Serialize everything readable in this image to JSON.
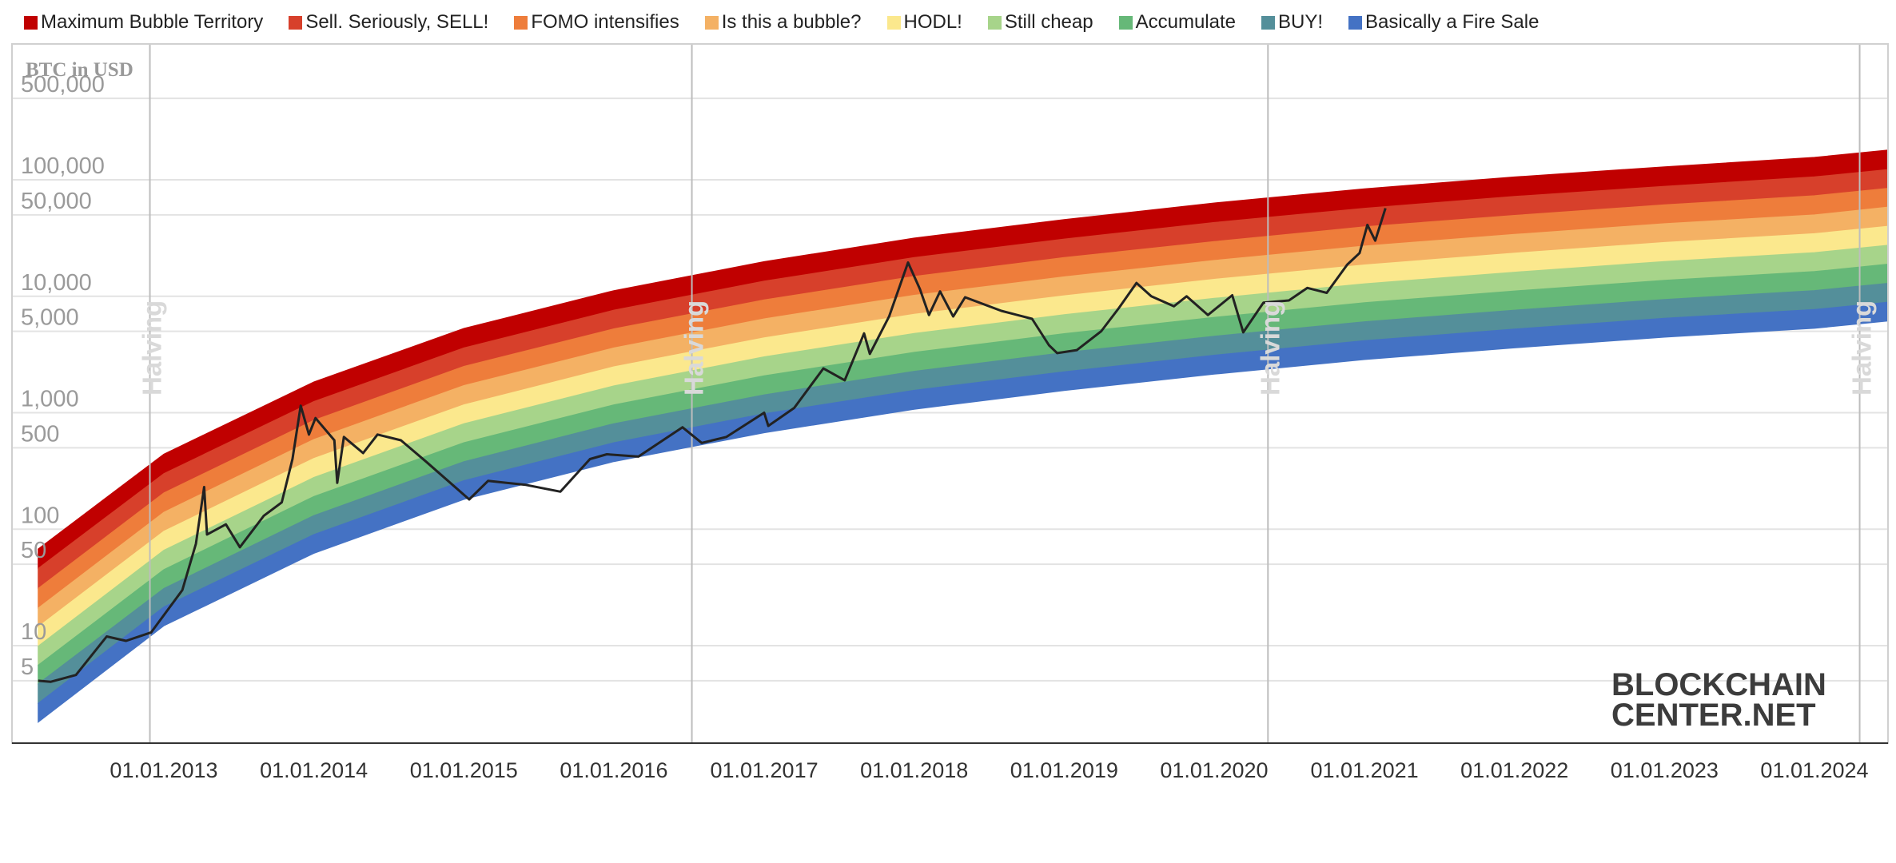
{
  "chart_data": {
    "type": "line",
    "axis_title": "BTC in USD",
    "y_scale": "log",
    "y_ticks": [
      5,
      10,
      50,
      100,
      500,
      1000,
      5000,
      10000,
      50000,
      100000,
      500000
    ],
    "y_tick_labels": [
      "5",
      "10",
      "50",
      "100",
      "500",
      "1,000",
      "5,000",
      "10,000",
      "50,000",
      "100,000",
      "500,000"
    ],
    "xlim": [
      "2012-03-01",
      "2024-08-01"
    ],
    "x_ticks": [
      "2013-01-01",
      "2014-01-01",
      "2015-01-01",
      "2016-01-01",
      "2017-01-01",
      "2018-01-01",
      "2019-01-01",
      "2020-01-01",
      "2021-01-01",
      "2022-01-01",
      "2023-01-01",
      "2024-01-01"
    ],
    "x_tick_labels": [
      "01.01.2013",
      "01.01.2014",
      "01.01.2015",
      "01.01.2016",
      "01.01.2017",
      "01.01.2018",
      "01.01.2019",
      "01.01.2020",
      "01.01.2021",
      "01.01.2022",
      "01.01.2023",
      "01.01.2024"
    ],
    "legend_position": "top",
    "bands": [
      {
        "name": "Maximum Bubble Territory",
        "color": "#c00000",
        "lower_edge": [
          46,
          300,
          1250,
          3600,
          7600,
          13500,
          21500,
          31000,
          43000,
          57000,
          72000,
          88000,
          106000,
          126000
        ]
      },
      {
        "name": "Sell. Seriously, SELL!",
        "color": "#d7402b",
        "lower_edge": [
          31,
          205,
          860,
          2500,
          5250,
          9300,
          14800,
          21500,
          29500,
          39500,
          49500,
          61000,
          73000,
          87000
        ]
      },
      {
        "name": "FOMO intensifies",
        "color": "#ee7d3b",
        "lower_edge": [
          21,
          140,
          590,
          1710,
          3600,
          6400,
          10200,
          14700,
          20300,
          27000,
          34000,
          42000,
          50000,
          60000
        ]
      },
      {
        "name": "Is this a bubble?",
        "color": "#f4b164",
        "lower_edge": [
          14.5,
          96,
          405,
          1170,
          2480,
          4400,
          7000,
          10100,
          14000,
          18600,
          23500,
          29000,
          34500,
          41000
        ]
      },
      {
        "name": "HODL!",
        "color": "#fbe88d",
        "lower_edge": [
          9.9,
          66,
          278,
          805,
          1700,
          3020,
          4800,
          6950,
          9600,
          12800,
          16100,
          19900,
          23700,
          28200
        ]
      },
      {
        "name": "Still cheap",
        "color": "#a7d48a",
        "lower_edge": [
          6.8,
          45,
          191,
          553,
          1170,
          2075,
          3300,
          4780,
          6600,
          8800,
          11100,
          13700,
          16300,
          19400
        ]
      },
      {
        "name": "Accumulate",
        "color": "#66b878",
        "lower_edge": [
          4.7,
          31,
          131,
          380,
          805,
          1425,
          2270,
          3280,
          4540,
          6050,
          7600,
          9400,
          11200,
          13300
        ]
      },
      {
        "name": "BUY!",
        "color": "#548f9a",
        "lower_edge": [
          3.2,
          21.5,
          90,
          261,
          553,
          980,
          1560,
          2250,
          3120,
          4160,
          5230,
          6470,
          7700,
          9150
        ]
      },
      {
        "name": "Basically a Fire Sale",
        "color": "#4472c4",
        "lower_edge": [
          2.2,
          14.8,
          62,
          180,
          380,
          673,
          1070,
          1550,
          2140,
          2860,
          3600,
          4450,
          5300,
          6300
        ]
      }
    ],
    "band_dates": [
      "2012-03-01",
      "2013-01-01",
      "2014-01-01",
      "2015-01-01",
      "2016-01-01",
      "2017-01-01",
      "2018-01-01",
      "2019-01-01",
      "2020-01-01",
      "2021-01-01",
      "2022-01-01",
      "2023-01-01",
      "2024-01-01",
      "2024-08-01"
    ],
    "series": [
      {
        "color": "#222222",
        "x": [
          "2012-03-01",
          "2012-04-01",
          "2012-06-01",
          "2012-08-15",
          "2012-10-01",
          "2012-12-01",
          "2013-02-15",
          "2013-03-20",
          "2013-04-09",
          "2013-04-16",
          "2013-06-01",
          "2013-07-05",
          "2013-09-01",
          "2013-10-15",
          "2013-11-10",
          "2013-11-30",
          "2013-12-20",
          "2014-01-05",
          "2014-02-20",
          "2014-02-27",
          "2014-03-15",
          "2014-05-01",
          "2014-06-05",
          "2014-08-01",
          "2014-10-01",
          "2015-01-14",
          "2015-03-01",
          "2015-06-01",
          "2015-08-24",
          "2015-11-04",
          "2015-12-15",
          "2016-03-01",
          "2016-06-16",
          "2016-08-02",
          "2016-10-01",
          "2017-01-01",
          "2017-01-11",
          "2017-03-15",
          "2017-05-25",
          "2017-07-16",
          "2017-09-01",
          "2017-09-15",
          "2017-11-01",
          "2017-12-17",
          "2018-01-15",
          "2018-02-06",
          "2018-03-05",
          "2018-04-06",
          "2018-05-05",
          "2018-08-01",
          "2018-10-15",
          "2018-11-25",
          "2018-12-15",
          "2019-02-01",
          "2019-04-01",
          "2019-05-15",
          "2019-06-26",
          "2019-08-01",
          "2019-09-25",
          "2019-10-26",
          "2019-12-17",
          "2020-02-14",
          "2020-03-12",
          "2020-04-30",
          "2020-07-01",
          "2020-08-15",
          "2020-10-01",
          "2020-11-20",
          "2020-12-20",
          "2021-01-08",
          "2021-01-27",
          "2021-02-21"
        ],
        "y": [
          5,
          4.9,
          5.6,
          12,
          11,
          13,
          30,
          75,
          230,
          90,
          110,
          70,
          130,
          170,
          400,
          1150,
          650,
          900,
          580,
          250,
          620,
          450,
          650,
          580,
          380,
          180,
          260,
          240,
          210,
          400,
          440,
          420,
          750,
          550,
          620,
          1000,
          770,
          1100,
          2400,
          1900,
          4800,
          3200,
          6700,
          19500,
          11500,
          6900,
          11000,
          6700,
          9800,
          7500,
          6400,
          3800,
          3250,
          3450,
          5000,
          8000,
          13000,
          10000,
          8200,
          10000,
          6900,
          10200,
          4900,
          8800,
          9200,
          11800,
          10700,
          18700,
          23500,
          41000,
          30000,
          57000
        ]
      }
    ],
    "annotations": [
      {
        "text": "Halving",
        "date": "2012-11-28"
      },
      {
        "text": "Halving",
        "date": "2016-07-09"
      },
      {
        "text": "Halving",
        "date": "2020-05-11"
      },
      {
        "text": "Halving",
        "date": "2024-04-20"
      }
    ],
    "watermark": {
      "line1": "BLOCKCHAIN",
      "line2": "CENTER.NET"
    }
  }
}
